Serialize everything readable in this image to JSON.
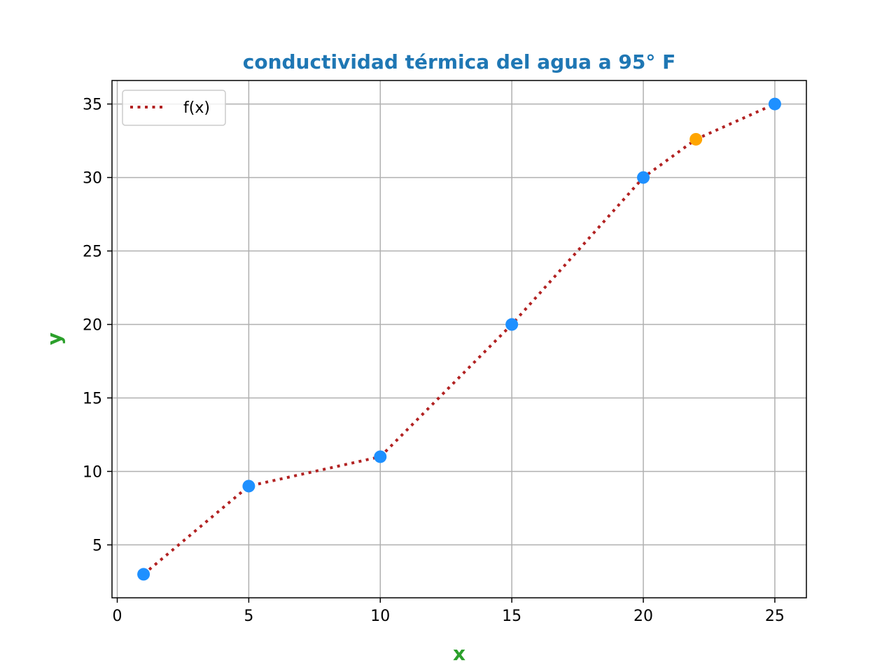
{
  "chart_data": {
    "type": "line",
    "title": "conductividad térmica del agua a 95° F",
    "xlabel": "x",
    "ylabel": "y",
    "xlim": [
      -0.2,
      26.2
    ],
    "ylim": [
      1.4,
      36.6
    ],
    "xticks": [
      0,
      5,
      10,
      15,
      20,
      25
    ],
    "yticks": [
      5,
      10,
      15,
      20,
      25,
      30,
      35
    ],
    "grid": true,
    "legend_position": "top-left",
    "series": [
      {
        "name": "f(x)",
        "style": "dotted",
        "color": "#b22222",
        "x": [
          1,
          5,
          10,
          15,
          20,
          22,
          25
        ],
        "y": [
          3,
          9,
          11,
          20,
          30,
          32.6,
          35
        ]
      }
    ],
    "points": {
      "color": "#1e90ff",
      "x": [
        1,
        5,
        10,
        15,
        20,
        25
      ],
      "y": [
        3,
        9,
        11,
        20,
        30,
        35
      ]
    },
    "highlight_point": {
      "color": "#ffa500",
      "x": 22,
      "y": 32.6
    },
    "colors": {
      "title": "#1f77b4",
      "axis_labels": "#2ca02c",
      "grid": "#b0b0b0"
    }
  }
}
